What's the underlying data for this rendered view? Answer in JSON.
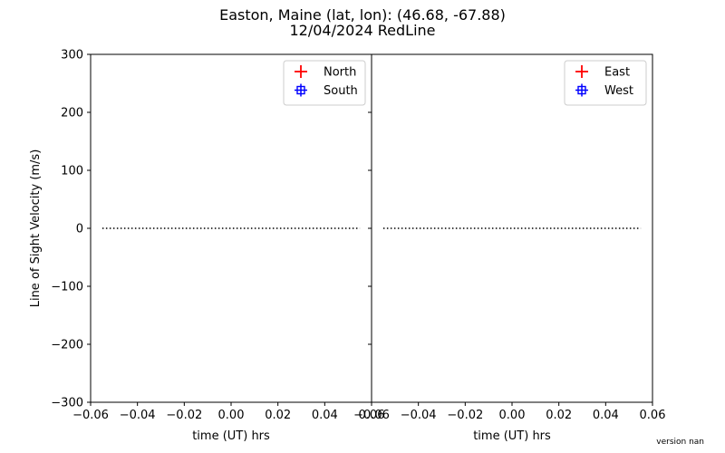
{
  "title_line1": "Easton, Maine   (lat, lon):  (46.68, -67.88)",
  "title_line2": "12/04/2024 RedLine",
  "version_text": "version nan",
  "chart_data": [
    {
      "type": "scatter",
      "panel": "left",
      "xlabel": "time (UT) hrs",
      "ylabel": "Line of Sight Velocity (m/s)",
      "xlim": [
        -0.06,
        0.06
      ],
      "ylim": [
        -300,
        300
      ],
      "xticks": [
        -0.06,
        -0.04,
        -0.02,
        0.0,
        0.02,
        0.04,
        0.06
      ],
      "xtick_labels": [
        "−0.06",
        "−0.04",
        "−0.02",
        "0.00",
        "0.02",
        "0.04",
        "0.06"
      ],
      "yticks": [
        -300,
        -200,
        -100,
        0,
        100,
        200,
        300
      ],
      "ytick_labels": [
        "−300",
        "−200",
        "−100",
        "0",
        "100",
        "200",
        "300"
      ],
      "legend_position": "top-right",
      "series": [
        {
          "name": "North",
          "color": "#ff0000",
          "marker": "plus",
          "x": [],
          "y": []
        },
        {
          "name": "South",
          "color": "#0000ff",
          "marker": "square",
          "x": [],
          "y": []
        }
      ],
      "reference_line": {
        "y": 0,
        "x_range": [
          -0.055,
          0.055
        ],
        "style": "dotted",
        "color": "#000000"
      }
    },
    {
      "type": "scatter",
      "panel": "right",
      "xlabel": "time (UT) hrs",
      "ylabel": "",
      "xlim": [
        -0.06,
        0.06
      ],
      "ylim": [
        -300,
        300
      ],
      "xticks": [
        -0.06,
        -0.04,
        -0.02,
        0.0,
        0.02,
        0.04,
        0.06
      ],
      "xtick_labels": [
        "−0.06",
        "−0.04",
        "−0.02",
        "0.00",
        "0.02",
        "0.04",
        "0.06"
      ],
      "yticks": [
        -300,
        -200,
        -100,
        0,
        100,
        200,
        300
      ],
      "ytick_labels": [],
      "legend_position": "top-right",
      "series": [
        {
          "name": "East",
          "color": "#ff0000",
          "marker": "plus",
          "x": [],
          "y": []
        },
        {
          "name": "West",
          "color": "#0000ff",
          "marker": "square",
          "x": [],
          "y": []
        }
      ],
      "reference_line": {
        "y": 0,
        "x_range": [
          -0.055,
          0.055
        ],
        "style": "dotted",
        "color": "#000000"
      }
    }
  ]
}
